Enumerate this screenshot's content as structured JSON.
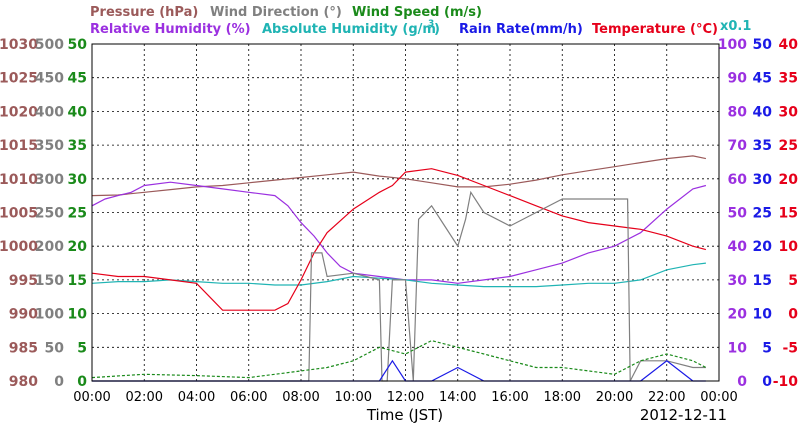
{
  "colors": {
    "pressure": "#9b5a5a",
    "wind_direction": "#808080",
    "wind_speed": "#1a8a1a",
    "humidity": "#9b30e0",
    "abs_humidity": "#20b4b4",
    "rain": "#1a1ae6",
    "temperature": "#e6001a",
    "grid": "#000000"
  },
  "legend": {
    "pressure": "Pressure (hPa)",
    "wind_direction": "Wind Direction (°)",
    "wind_speed": "Wind Speed (m/s)",
    "humidity": "Relative Humidity (%)",
    "abs_humidity": "Absolute Humidity (g/m",
    "abs_humidity_sup": "3",
    "abs_humidity_close": ")",
    "rain": "Rain Rate(mm/h)",
    "temperature": "Temperature (°C)",
    "multiplier": "x0.1"
  },
  "x_axis": {
    "title": "Time (JST)",
    "date": "2012-12-11"
  },
  "chart_data": {
    "type": "line",
    "x_ticks": [
      "00:00",
      "02:00",
      "04:00",
      "06:00",
      "08:00",
      "10:00",
      "12:00",
      "14:00",
      "16:00",
      "18:00",
      "20:00",
      "22:00",
      "00:00"
    ],
    "x_range_hours": [
      0,
      24
    ],
    "axes": {
      "pressure": {
        "label": "Pressure (hPa)",
        "range": [
          980,
          1030
        ],
        "ticks": [
          "1030",
          "1025",
          "1020",
          "1015",
          "1010",
          "1005",
          "1000",
          "995",
          "990",
          "985",
          "980"
        ]
      },
      "wind_direction": {
        "label": "Wind Direction (°)",
        "range": [
          0,
          500
        ],
        "ticks": [
          "500",
          "450",
          "400",
          "350",
          "300",
          "250",
          "200",
          "150",
          "100",
          "50",
          "0"
        ]
      },
      "wind_speed": {
        "label": "Wind Speed (m/s)",
        "range": [
          0,
          50
        ],
        "ticks": [
          "50",
          "45",
          "40",
          "35",
          "30",
          "25",
          "20",
          "15",
          "10",
          "5",
          "0"
        ]
      },
      "humidity": {
        "label": "Relative Humidity (%)",
        "range": [
          0,
          100
        ],
        "ticks": [
          "100",
          "90",
          "80",
          "70",
          "60",
          "50",
          "40",
          "30",
          "20",
          "10",
          "0"
        ]
      },
      "rain": {
        "label": "Rain Rate(mm/h)",
        "range": [
          0,
          50
        ],
        "ticks": [
          "50",
          "45",
          "40",
          "35",
          "30",
          "25",
          "20",
          "15",
          "10",
          "5",
          "0"
        ]
      },
      "temperature": {
        "label": "Temperature (°C)",
        "range": [
          -10,
          40
        ],
        "ticks": [
          "40",
          "35",
          "30",
          "25",
          "20",
          "15",
          "10",
          "5",
          "0",
          "-5",
          "-10"
        ]
      }
    },
    "series": [
      {
        "name": "Pressure (hPa)",
        "axis": "pressure",
        "color": "#9b5a5a",
        "x": [
          0,
          1,
          2,
          3,
          4,
          5,
          6,
          7,
          8,
          9,
          10,
          11,
          12,
          13,
          14,
          15,
          16,
          17,
          18,
          19,
          20,
          21,
          22,
          23,
          23.5
        ],
        "y": [
          1007.5,
          1007.6,
          1008.0,
          1008.4,
          1008.8,
          1009.0,
          1009.4,
          1009.8,
          1010.2,
          1010.6,
          1011.0,
          1010.4,
          1010.0,
          1009.4,
          1008.8,
          1008.8,
          1009.2,
          1009.8,
          1010.6,
          1011.2,
          1011.8,
          1012.4,
          1013.0,
          1013.4,
          1013.0
        ]
      },
      {
        "name": "Relative Humidity (%)",
        "axis": "humidity",
        "color": "#9b30e0",
        "x": [
          0,
          0.5,
          1,
          1.5,
          2,
          3,
          4,
          5,
          6,
          7,
          7.5,
          8,
          8.5,
          9,
          9.5,
          10,
          11,
          12,
          13,
          14,
          15,
          16,
          17,
          18,
          19,
          20,
          21,
          22,
          23,
          23.5
        ],
        "y": [
          52,
          54,
          55,
          56,
          58,
          59,
          58,
          57,
          56,
          55,
          52,
          47,
          43,
          38,
          34,
          32,
          31,
          30,
          30,
          29,
          30,
          31,
          33,
          35,
          38,
          40,
          44,
          51,
          57,
          58
        ]
      },
      {
        "name": "Absolute Humidity (g/m3) x0.1",
        "axis": "humidity",
        "color": "#20b4b4",
        "x": [
          0,
          1,
          2,
          3,
          4,
          5,
          6,
          7,
          8,
          9,
          10,
          11,
          12,
          13,
          14,
          15,
          16,
          17,
          18,
          19,
          20,
          21,
          22,
          23,
          23.5
        ],
        "y": [
          29,
          29.5,
          29.5,
          30,
          29.5,
          29,
          29,
          28.5,
          28.5,
          29.5,
          31,
          30.5,
          30,
          29,
          28.5,
          28,
          28,
          28,
          28.5,
          29,
          29,
          30,
          33,
          34.5,
          35
        ]
      },
      {
        "name": "Temperature (°C)",
        "axis": "temperature",
        "color": "#e6001a",
        "x": [
          0,
          1,
          2,
          3,
          4,
          5,
          6,
          7,
          7.5,
          8,
          8.5,
          9,
          10,
          11,
          11.5,
          12,
          13,
          14,
          15,
          16,
          17,
          18,
          19,
          20,
          21,
          22,
          23,
          23.5
        ],
        "y": [
          6,
          5.5,
          5.5,
          5,
          4.5,
          0.5,
          0.5,
          0.5,
          1.5,
          5,
          9,
          12,
          15.5,
          18,
          19,
          21,
          21.5,
          20.5,
          19,
          17.5,
          16,
          14.5,
          13.5,
          13,
          12.5,
          11.5,
          10,
          9.5
        ]
      },
      {
        "name": "Wind Direction (°)",
        "axis": "wind_direction",
        "color": "#808080",
        "x": [
          0,
          8.3,
          8.4,
          8.8,
          9,
          10,
          10.5,
          11,
          11.1,
          11.3,
          11.5,
          12,
          12.3,
          12.5,
          13,
          13.5,
          14,
          14.3,
          14.5,
          15,
          16,
          17,
          18,
          19,
          20.3,
          20.5,
          20.6,
          21,
          22,
          23,
          23.5
        ],
        "y": [
          0,
          0,
          190,
          190,
          155,
          160,
          155,
          150,
          0,
          0,
          150,
          150,
          0,
          240,
          260,
          230,
          200,
          240,
          280,
          250,
          230,
          250,
          270,
          270,
          270,
          270,
          0,
          30,
          30,
          20,
          20
        ]
      },
      {
        "name": "Wind Speed (m/s)",
        "axis": "wind_speed",
        "color": "#1a8a1a",
        "x": [
          0,
          2,
          4,
          6,
          7,
          8,
          9,
          10,
          11,
          12,
          13,
          14,
          15,
          16,
          17,
          18,
          19,
          20,
          21,
          22,
          23,
          23.5
        ],
        "y": [
          0.5,
          1,
          0.8,
          0.5,
          1,
          1.5,
          2,
          3,
          5,
          4,
          6,
          5,
          4,
          3,
          2,
          2,
          1.5,
          1,
          3,
          4,
          3,
          2
        ]
      },
      {
        "name": "Rain Rate(mm/h)",
        "axis": "rain",
        "color": "#1a1ae6",
        "x": [
          0,
          10,
          11,
          11.5,
          12,
          13,
          14,
          15,
          20,
          21,
          22,
          23,
          23.5
        ],
        "y": [
          0,
          0,
          0,
          3,
          0,
          0,
          2,
          0,
          0,
          0,
          3,
          0,
          0
        ]
      }
    ]
  }
}
